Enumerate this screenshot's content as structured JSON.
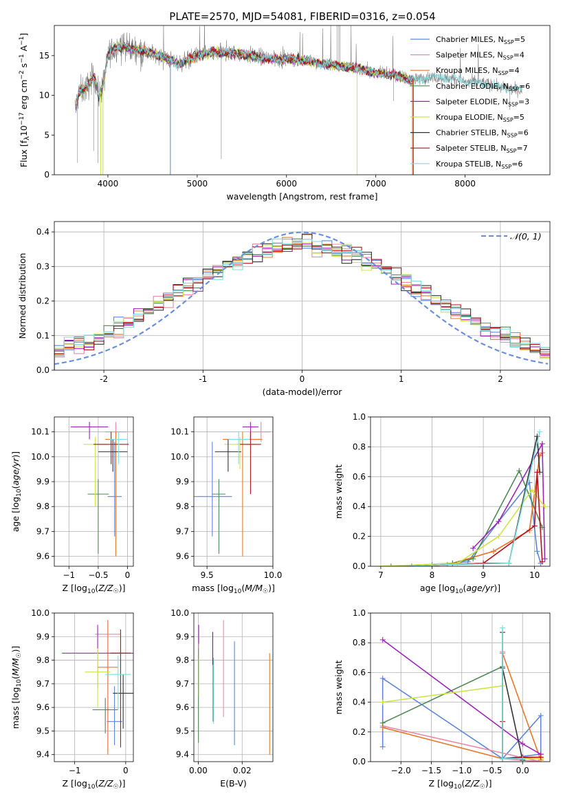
{
  "title": "PLATE=2570, MJD=54081, FIBERID=0316, z=0.054",
  "colors": {
    "Chabrier MILES": "#5b86d9",
    "Salpeter MILES": "#e889a7",
    "Kroupa MILES": "#e8772b",
    "Chabrier ELODIE": "#4e8a55",
    "Salpeter ELODIE": "#9b25b5",
    "Kroupa ELODIE": "#cde444",
    "Chabrier STELIB": "#333333",
    "Salpeter STELIB": "#b5101b",
    "Kroupa STELIB": "#7fdde0",
    "data": "#7f7f7f",
    "normal": "#6a8fdb",
    "grid": "#b0b0b0"
  },
  "legend_entries": [
    {
      "key": "Chabrier MILES",
      "label": "Chabrier MILES, N",
      "nssp": "5"
    },
    {
      "key": "Salpeter MILES",
      "label": "Salpeter MILES, N",
      "nssp": "4"
    },
    {
      "key": "Kroupa MILES",
      "label": "Kroupa MILES, N",
      "nssp": "4"
    },
    {
      "key": "Chabrier ELODIE",
      "label": "Chabrier ELODIE, N",
      "nssp": "6"
    },
    {
      "key": "Salpeter ELODIE",
      "label": "Salpeter ELODIE, N",
      "nssp": "3"
    },
    {
      "key": "Kroupa ELODIE",
      "label": "Kroupa ELODIE, N",
      "nssp": "5"
    },
    {
      "key": "Chabrier STELIB",
      "label": "Chabrier STELIB, N",
      "nssp": "6"
    },
    {
      "key": "Salpeter STELIB",
      "label": "Salpeter STELIB, N",
      "nssp": "7"
    },
    {
      "key": "Kroupa STELIB",
      "label": "Kroupa STELIB, N",
      "nssp": "6"
    }
  ],
  "chart_data": [
    {
      "id": "spectrum",
      "type": "line",
      "xlabel": "wavelength [Angstrom, rest frame]",
      "ylabel": "Flux [f_λ 10^-17 erg cm^-2 s^-1 A^-1]",
      "xlim": [
        3400,
        8950
      ],
      "ylim": [
        0,
        18.8
      ],
      "xticks": [
        4000,
        5000,
        6000,
        7000,
        8000
      ],
      "yticks": [
        0,
        5,
        10,
        15
      ],
      "data_anchors": {
        "x": [
          3640,
          3680,
          3750,
          3850,
          3900,
          3950,
          4000,
          4100,
          4300,
          4500,
          4800,
          5000,
          5200,
          5500,
          5800,
          6000,
          6200,
          6400,
          6600,
          6800,
          7000,
          7200,
          7400,
          7600,
          7800,
          8000,
          8200,
          8400,
          8650
        ],
        "y": [
          8.5,
          10.5,
          10.8,
          12.5,
          9.8,
          11.5,
          15.0,
          16.2,
          15.8,
          15.3,
          14.0,
          15.0,
          15.4,
          15.2,
          14.6,
          14.6,
          14.4,
          14.0,
          13.7,
          13.4,
          12.8,
          12.6,
          11.9,
          12.3,
          12.2,
          11.7,
          11.6,
          11.0,
          10.6
        ]
      }
    },
    {
      "id": "residuals",
      "type": "histogram",
      "xlabel": "(data-model)/error",
      "ylabel": "Normed distribution",
      "xlim": [
        -2.5,
        2.5
      ],
      "ylim": [
        0,
        0.43
      ],
      "xticks": [
        -2,
        -1,
        0,
        1,
        2
      ],
      "yticks": [
        0.0,
        0.1,
        0.2,
        0.3,
        0.4
      ],
      "normal_label": "𝒩(0, 1)",
      "bin_width": 0.1
    },
    {
      "id": "age_vs_Z",
      "type": "errorbar",
      "xlabel": "Z [log10(Z/Z☉)]",
      "ylabel": "age [log10(age/yr)]",
      "xlim": [
        -1.25,
        0.1
      ],
      "ylim": [
        9.56,
        10.16
      ],
      "xticks": [
        -1,
        -0.5,
        0
      ],
      "yticks": [
        9.6,
        9.7,
        9.8,
        9.9,
        10.0,
        10.1
      ],
      "points": [
        {
          "key": "Chabrier MILES",
          "x": -0.22,
          "y": 9.84,
          "xerr": 0.12,
          "yerr": [
            0.16,
            0.22
          ]
        },
        {
          "key": "Salpeter MILES",
          "x": -0.2,
          "y": 10.1,
          "xerr": 0.18,
          "yerr": [
            0.04,
            0.04
          ]
        },
        {
          "key": "Kroupa MILES",
          "x": -0.2,
          "y": 10.07,
          "xerr": 0.18,
          "yerr": [
            0.47,
            0.03
          ]
        },
        {
          "key": "Chabrier ELODIE",
          "x": -0.5,
          "y": 9.85,
          "xerr": 0.18,
          "yerr": [
            0.24,
            0.06
          ]
        },
        {
          "key": "Salpeter ELODIE",
          "x": -0.65,
          "y": 10.12,
          "xerr": 0.32,
          "yerr": [
            0.05,
            0.02
          ]
        },
        {
          "key": "Kroupa ELODIE",
          "x": -0.55,
          "y": 10.05,
          "xerr": 0.2,
          "yerr": [
            0.25,
            0.03
          ]
        },
        {
          "key": "Chabrier STELIB",
          "x": -0.25,
          "y": 10.02,
          "xerr": 0.25,
          "yerr": [
            0.08,
            0.05
          ]
        },
        {
          "key": "Salpeter STELIB",
          "x": -0.28,
          "y": 10.05,
          "xerr": 0.3,
          "yerr": [
            0.08,
            0.05
          ]
        },
        {
          "key": "Kroupa STELIB",
          "x": -0.15,
          "y": 10.07,
          "xerr": 0.15,
          "yerr": [
            0.1,
            0.03
          ]
        }
      ]
    },
    {
      "id": "age_vs_mass",
      "type": "errorbar",
      "xlabel": "mass [log10(M/M☉)]",
      "ylabel": "",
      "xlim": [
        9.4,
        10.0
      ],
      "ylim": [
        9.56,
        10.16
      ],
      "xticks": [
        9.5,
        10.0
      ],
      "yticks": [
        9.6,
        9.7,
        9.8,
        9.9,
        10.0,
        10.1
      ],
      "points": [
        {
          "key": "Chabrier MILES",
          "x": 9.54,
          "y": 9.84,
          "xerr": 0.15,
          "yerr": [
            0.16,
            0.22
          ]
        },
        {
          "key": "Salpeter MILES",
          "x": 9.91,
          "y": 10.1,
          "xerr": 0.07,
          "yerr": [
            0.04,
            0.04
          ]
        },
        {
          "key": "Kroupa MILES",
          "x": 9.77,
          "y": 10.07,
          "xerr": 0.15,
          "yerr": [
            0.47,
            0.03
          ]
        },
        {
          "key": "Chabrier ELODIE",
          "x": 9.59,
          "y": 9.85,
          "xerr": 0.05,
          "yerr": [
            0.24,
            0.06
          ]
        },
        {
          "key": "Salpeter ELODIE",
          "x": 9.83,
          "y": 10.12,
          "xerr": 0.06,
          "yerr": [
            0.05,
            0.02
          ]
        },
        {
          "key": "Kroupa ELODIE",
          "x": 9.75,
          "y": 10.05,
          "xerr": 0.12,
          "yerr": [
            0.1,
            0.03
          ]
        },
        {
          "key": "Chabrier STELIB",
          "x": 9.66,
          "y": 10.02,
          "xerr": 0.1,
          "yerr": [
            0.08,
            0.05
          ]
        },
        {
          "key": "Salpeter STELIB",
          "x": 9.83,
          "y": 10.05,
          "xerr": 0.08,
          "yerr": [
            0.2,
            0.05
          ]
        },
        {
          "key": "Kroupa STELIB",
          "x": 9.74,
          "y": 10.07,
          "xerr": 0.08,
          "yerr": [
            0.1,
            0.03
          ]
        }
      ]
    },
    {
      "id": "weight_vs_age",
      "type": "line",
      "xlabel": "age [log10(age/yr)]",
      "ylabel": "mass weight",
      "xlim": [
        6.8,
        10.3
      ],
      "ylim": [
        0,
        1.0
      ],
      "xticks": [
        7,
        8,
        9,
        10
      ],
      "yticks": [
        0.0,
        0.2,
        0.4,
        0.6,
        0.8,
        1.0
      ],
      "series": [
        {
          "key": "Chabrier MILES",
          "x": [
            8.0,
            8.7,
            9.3,
            9.9,
            10.05,
            10.12
          ],
          "y": [
            0.01,
            0.03,
            0.3,
            0.56,
            0.1,
            0.02
          ]
        },
        {
          "key": "Salpeter MILES",
          "x": [
            7.6,
            8.4,
            9.2,
            9.9,
            10.1
          ],
          "y": [
            0.0,
            0.02,
            0.1,
            0.24,
            0.74
          ]
        },
        {
          "key": "Kroupa MILES",
          "x": [
            7.6,
            8.4,
            9.2,
            9.9,
            10.1,
            10.15
          ],
          "y": [
            0.0,
            0.02,
            0.1,
            0.24,
            0.74,
            0.76
          ]
        },
        {
          "key": "Chabrier ELODIE",
          "x": [
            7.2,
            8.4,
            8.8,
            9.7,
            10.15
          ],
          "y": [
            0.0,
            0.02,
            0.05,
            0.64,
            0.26
          ]
        },
        {
          "key": "Salpeter ELODIE",
          "x": [
            8.8,
            9.3,
            10.15,
            10.2
          ],
          "y": [
            0.12,
            0.3,
            0.82,
            0.05
          ]
        },
        {
          "key": "Kroupa ELODIE",
          "x": [
            7.0,
            8.5,
            9.3,
            9.95,
            10.2
          ],
          "y": [
            0.0,
            0.02,
            0.2,
            0.51,
            0.4
          ]
        },
        {
          "key": "Chabrier STELIB",
          "x": [
            7.6,
            8.3,
            9.0,
            9.5,
            10.05,
            10.1
          ],
          "y": [
            0.0,
            0.01,
            0.02,
            0.02,
            0.87,
            0.63
          ]
        },
        {
          "key": "Salpeter STELIB",
          "x": [
            7.6,
            8.3,
            9.0,
            10.0,
            10.05,
            10.15
          ],
          "y": [
            0.0,
            0.01,
            0.02,
            0.27,
            0.63,
            0.03
          ]
        },
        {
          "key": "Kroupa STELIB",
          "x": [
            7.6,
            8.3,
            9.5,
            10.1
          ],
          "y": [
            0.0,
            0.01,
            0.02,
            0.9
          ]
        }
      ]
    },
    {
      "id": "mass_vs_Z",
      "type": "errorbar",
      "xlabel": "Z [log10(Z/Z☉)]",
      "ylabel": "mass [log10(M/M☉)]",
      "xlim": [
        -1.4,
        0.15
      ],
      "ylim": [
        9.37,
        10.0
      ],
      "xticks": [
        -1,
        0
      ],
      "yticks": [
        9.4,
        9.5,
        9.6,
        9.7,
        9.8,
        9.9,
        10.0
      ],
      "points": [
        {
          "key": "Chabrier MILES",
          "x": -0.22,
          "y": 9.54,
          "xerr": 0.15,
          "yerr": [
            0.1,
            0.15
          ]
        },
        {
          "key": "Salpeter MILES",
          "x": -0.35,
          "y": 9.91,
          "xerr": 0.25,
          "yerr": [
            0.5,
            0.06
          ]
        },
        {
          "key": "Kroupa MILES",
          "x": -0.35,
          "y": 9.77,
          "xerr": 0.2,
          "yerr": [
            0.37,
            0.2
          ]
        },
        {
          "key": "Chabrier ELODIE",
          "x": -0.4,
          "y": 9.59,
          "xerr": 0.25,
          "yerr": [
            0.1,
            0.05
          ]
        },
        {
          "key": "Salpeter ELODIE",
          "x": -0.55,
          "y": 9.83,
          "xerr": 0.7,
          "yerr": [
            0.15,
            0.12
          ]
        },
        {
          "key": "Kroupa ELODIE",
          "x": -0.55,
          "y": 9.75,
          "xerr": 0.25,
          "yerr": [
            0.15,
            0.1
          ]
        },
        {
          "key": "Chabrier STELIB",
          "x": -0.05,
          "y": 9.66,
          "xerr": 0.2,
          "yerr": [
            0.15,
            0.08
          ]
        },
        {
          "key": "Salpeter STELIB",
          "x": -0.1,
          "y": 9.83,
          "xerr": 0.2,
          "yerr": [
            0.4,
            0.1
          ]
        },
        {
          "key": "Kroupa STELIB",
          "x": -0.15,
          "y": 9.74,
          "xerr": 0.25,
          "yerr": [
            0.15,
            0.08
          ]
        }
      ]
    },
    {
      "id": "mass_vs_EBV",
      "type": "errorbar",
      "xlabel": "E(B-V)",
      "ylabel": "",
      "xlim": [
        -0.002,
        0.034
      ],
      "ylim": [
        9.37,
        10.0
      ],
      "xticks": [
        0.0,
        0.02
      ],
      "yticks": [
        9.4,
        9.5,
        9.6,
        9.7,
        9.8,
        9.9,
        10.0
      ],
      "points": [
        {
          "key": "Chabrier MILES",
          "x": 0.0165,
          "y": 9.54,
          "xerr": 0,
          "yerr": [
            0.1,
            0.34
          ]
        },
        {
          "key": "Salpeter MILES",
          "x": 0.0115,
          "y": 9.91,
          "xerr": 0,
          "yerr": [
            0.35,
            0.06
          ]
        },
        {
          "key": "Kroupa MILES",
          "x": 0.0325,
          "y": 9.77,
          "xerr": 0,
          "yerr": [
            0.37,
            0.06
          ]
        },
        {
          "key": "Chabrier ELODIE",
          "x": 0.0001,
          "y": 9.59,
          "xerr": 0,
          "yerr": [
            0.14,
            0.26
          ]
        },
        {
          "key": "Salpeter ELODIE",
          "x": 0.0002,
          "y": 9.83,
          "xerr": 0,
          "yerr": [
            0.02,
            0.12
          ]
        },
        {
          "key": "Kroupa ELODIE",
          "x": 0.0003,
          "y": 9.75,
          "xerr": 0,
          "yerr": [
            0.1,
            0.12
          ]
        },
        {
          "key": "Chabrier STELIB",
          "x": 0.0068,
          "y": 9.66,
          "xerr": 0,
          "yerr": [
            0.12,
            0.15
          ]
        },
        {
          "key": "Salpeter STELIB",
          "x": 0.0066,
          "y": 9.83,
          "xerr": 0,
          "yerr": [
            0.05,
            0.09
          ]
        },
        {
          "key": "Kroupa STELIB",
          "x": 0.007,
          "y": 9.74,
          "xerr": 0,
          "yerr": [
            0.21,
            0.07
          ]
        }
      ]
    },
    {
      "id": "weight_vs_Z",
      "type": "line",
      "xlabel": "Z [log10(Z/Z☉)]",
      "ylabel": "mass weight",
      "xlim": [
        -2.5,
        0.45
      ],
      "ylim": [
        0,
        1.0
      ],
      "xticks": [
        -2.0,
        -1.5,
        -1.0,
        -0.5,
        0.0
      ],
      "yticks": [
        0.0,
        0.2,
        0.4,
        0.6,
        0.8,
        1.0
      ],
      "xticklabels": [
        "−2.0",
        "−1.5",
        "−1.0",
        "−0.5",
        "0.0"
      ],
      "series": [
        {
          "key": "Chabrier MILES",
          "x": [
            -2.3,
            -2.3,
            -0.33,
            0.3,
            0.3,
            -0.33
          ],
          "y": [
            0.1,
            0.56,
            0.02,
            0.31,
            0.05,
            0.02
          ]
        },
        {
          "key": "Salpeter MILES",
          "x": [
            -2.3,
            0.3,
            -0.33,
            -0.33
          ],
          "y": [
            0.24,
            0.0,
            0.02,
            0.74
          ]
        },
        {
          "key": "Kroupa MILES",
          "x": [
            -2.3,
            -0.33,
            -0.33,
            0.3,
            0.3
          ],
          "y": [
            0.23,
            0.02,
            0.73,
            0.01,
            0.02
          ]
        },
        {
          "key": "Chabrier ELODIE",
          "x": [
            -2.3,
            -0.33,
            -0.33,
            0.3,
            0.3
          ],
          "y": [
            0.26,
            0.64,
            0.02,
            0.03,
            0.03
          ]
        },
        {
          "key": "Salpeter ELODIE",
          "x": [
            -2.3,
            0.0,
            0.3
          ],
          "y": [
            0.82,
            0.12,
            0.05
          ]
        },
        {
          "key": "Kroupa ELODIE",
          "x": [
            -2.3,
            -0.33,
            -0.33,
            0.3
          ],
          "y": [
            0.4,
            0.51,
            0.02,
            0.02
          ]
        },
        {
          "key": "Chabrier STELIB",
          "x": [
            -0.33,
            -0.33,
            -0.33,
            0.0
          ],
          "y": [
            0.02,
            0.87,
            0.63,
            0.01
          ]
        },
        {
          "key": "Salpeter STELIB",
          "x": [
            -0.33,
            -0.33,
            0.0,
            0.3
          ],
          "y": [
            0.27,
            0.02,
            0.03,
            0.03
          ]
        },
        {
          "key": "Kroupa STELIB",
          "x": [
            -0.33,
            -0.33,
            0.0
          ],
          "y": [
            0.9,
            0.02,
            0.02
          ]
        }
      ]
    }
  ]
}
